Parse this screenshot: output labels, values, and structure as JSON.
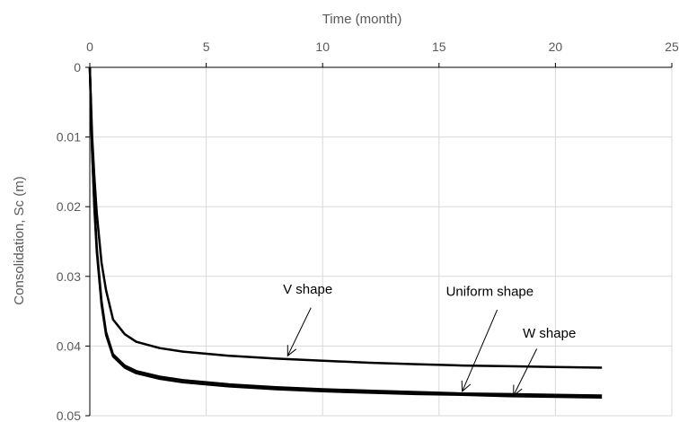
{
  "chart_data": {
    "type": "line",
    "xlabel": "Time (month)",
    "ylabel": "Consolidation, Sc (m)",
    "xlim": [
      0,
      25
    ],
    "ylim": [
      0,
      0.05
    ],
    "y_reversed": true,
    "x_axis_position": "top",
    "grid": true,
    "x_ticks": [
      "0",
      "5",
      "10",
      "15",
      "20",
      "25"
    ],
    "y_ticks": [
      "0",
      "0.01",
      "0.02",
      "0.03",
      "0.04",
      "0.05"
    ],
    "series": [
      {
        "name": "V shape",
        "x": [
          0,
          0.05,
          0.1,
          0.2,
          0.3,
          0.5,
          0.7,
          1,
          1.5,
          2,
          3,
          4,
          6,
          8,
          10,
          12,
          14,
          16,
          18,
          20,
          22
        ],
        "y": [
          0,
          0.005,
          0.01,
          0.016,
          0.021,
          0.028,
          0.032,
          0.0362,
          0.0383,
          0.0394,
          0.0403,
          0.0408,
          0.0414,
          0.0418,
          0.0421,
          0.0424,
          0.0426,
          0.0428,
          0.0429,
          0.043,
          0.0431
        ]
      },
      {
        "name": "Uniform shape",
        "x": [
          0,
          0.05,
          0.1,
          0.2,
          0.3,
          0.5,
          0.7,
          1,
          1.5,
          2,
          3,
          4,
          6,
          8,
          10,
          12,
          14,
          16,
          18,
          20,
          22
        ],
        "y": [
          0,
          0.006,
          0.012,
          0.02,
          0.026,
          0.0335,
          0.038,
          0.0412,
          0.0428,
          0.0436,
          0.0444,
          0.0449,
          0.0455,
          0.0459,
          0.0462,
          0.0464,
          0.0466,
          0.0468,
          0.0469,
          0.047,
          0.0471
        ]
      },
      {
        "name": "W shape",
        "x": [
          0,
          0.05,
          0.1,
          0.2,
          0.3,
          0.5,
          0.7,
          1,
          1.5,
          2,
          3,
          4,
          6,
          8,
          10,
          12,
          14,
          16,
          18,
          20,
          22
        ],
        "y": [
          0,
          0.0062,
          0.0123,
          0.0205,
          0.0265,
          0.034,
          0.0384,
          0.0415,
          0.0431,
          0.0439,
          0.0447,
          0.0452,
          0.0458,
          0.0462,
          0.0465,
          0.0467,
          0.0469,
          0.047,
          0.0472,
          0.0473,
          0.0474
        ]
      }
    ],
    "annotations": [
      {
        "text": "V shape",
        "label_x": 8.3,
        "label_y": 0.0325,
        "arrow_from": [
          9.5,
          0.0345
        ],
        "arrow_to": [
          8.5,
          0.0414
        ]
      },
      {
        "text": "Uniform shape",
        "label_x": 15.3,
        "label_y": 0.0328,
        "arrow_from": [
          17.5,
          0.0348
        ],
        "arrow_to": [
          16.0,
          0.0465
        ]
      },
      {
        "text": "W shape",
        "label_x": 18.6,
        "label_y": 0.0388,
        "arrow_from": [
          19.2,
          0.0404
        ],
        "arrow_to": [
          18.2,
          0.0471
        ]
      }
    ],
    "colors": {
      "line": "#000000",
      "grid": "#d9d9d9",
      "axis": "#000000",
      "text": "#595959"
    }
  }
}
